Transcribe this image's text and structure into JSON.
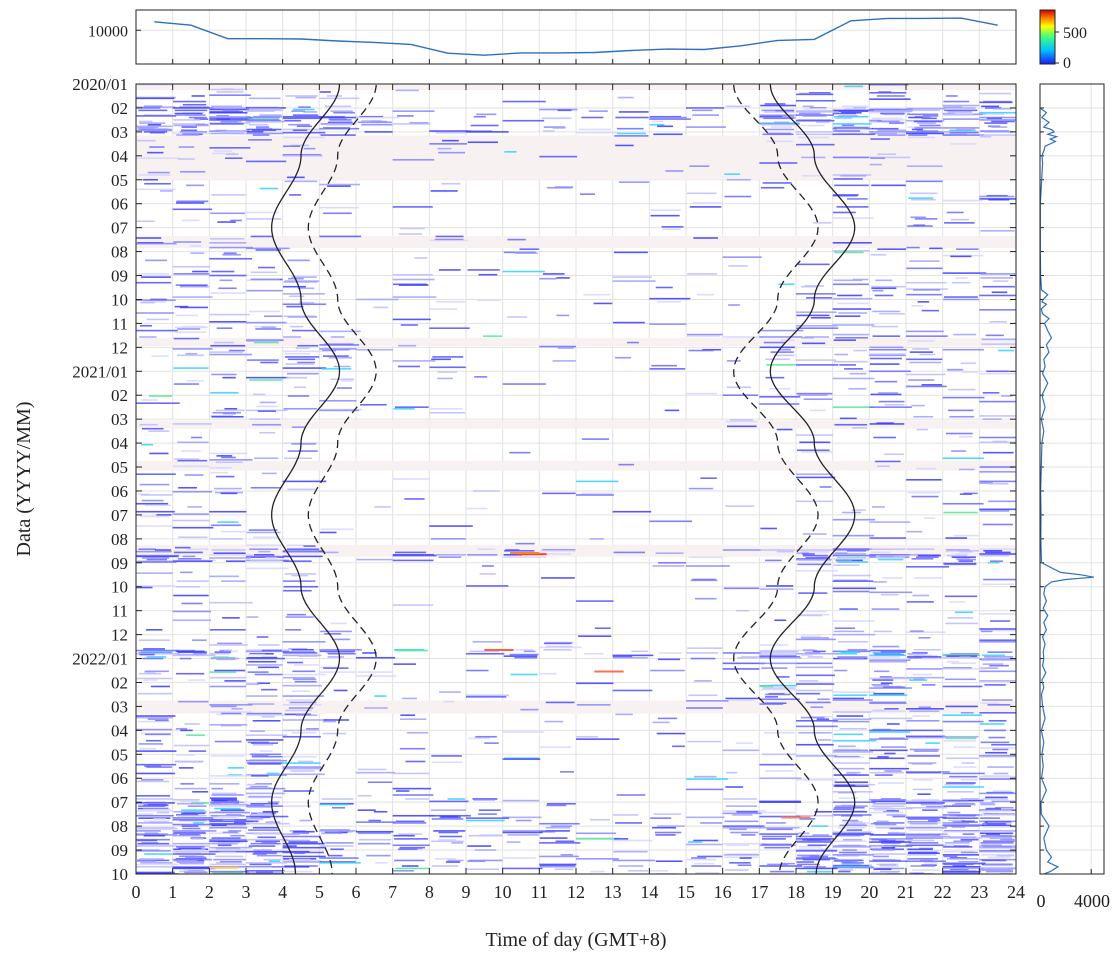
{
  "chart_data": {
    "type": "heatmap",
    "xlabel": "Time of day (GMT+8)",
    "ylabel": "Data (YYYY/MM)",
    "x_ticks": [
      "0",
      "1",
      "2",
      "3",
      "4",
      "5",
      "6",
      "7",
      "8",
      "9",
      "10",
      "11",
      "12",
      "13",
      "14",
      "15",
      "16",
      "17",
      "18",
      "19",
      "20",
      "21",
      "22",
      "23",
      "24"
    ],
    "x_range": [
      0,
      24
    ],
    "y_ticks": [
      "2020/01",
      "02",
      "03",
      "04",
      "05",
      "06",
      "07",
      "08",
      "09",
      "10",
      "11",
      "12",
      "2021/01",
      "02",
      "03",
      "04",
      "05",
      "06",
      "07",
      "08",
      "09",
      "10",
      "11",
      "12",
      "2022/01",
      "02",
      "03",
      "04",
      "05",
      "06",
      "07",
      "08",
      "09",
      "10"
    ],
    "y_range_months": [
      0,
      33
    ],
    "colorbar": {
      "ticks": [
        "500",
        "0"
      ],
      "range": [
        0,
        600
      ],
      "colors": [
        "#1a1aff",
        "#00c0ff",
        "#40ff80",
        "#ffff00",
        "#ff8000",
        "#d00000"
      ]
    },
    "top_panel": {
      "yticks": [
        "10000"
      ],
      "ylim": [
        0,
        16000
      ],
      "x": [
        0.5,
        1.5,
        2.5,
        3.5,
        4.5,
        5.5,
        6.5,
        7.5,
        8.5,
        9.5,
        10.5,
        11.5,
        12.5,
        13.5,
        14.5,
        15.5,
        16.5,
        17.5,
        18.5,
        19.5,
        20.5,
        21.5,
        22.5,
        23.5
      ],
      "values": [
        12500,
        11500,
        7500,
        7500,
        7400,
        6800,
        6400,
        5800,
        3200,
        2600,
        3300,
        3300,
        3400,
        4000,
        4400,
        4300,
        5400,
        7000,
        7300,
        12800,
        13500,
        13500,
        13600,
        11500
      ]
    },
    "right_panel": {
      "xticks": [
        "0",
        "4000"
      ],
      "xlim": [
        0,
        5000
      ],
      "months": [
        1.0,
        1.2,
        1.4,
        1.6,
        1.8,
        1.9,
        2.0,
        2.1,
        2.2,
        2.3,
        2.4,
        2.6,
        2.8,
        3.0,
        3.3,
        5.0,
        7.0,
        8.0,
        8.6,
        8.8,
        9.0,
        9.1,
        9.2,
        9.4,
        9.6,
        9.8,
        10.0,
        10.3,
        10.6,
        10.9,
        11.2,
        11.5,
        11.8,
        12.1,
        12.5,
        13.0,
        13.5,
        14.0,
        14.5,
        15.0,
        16.0,
        17.0,
        18.0,
        19.0,
        20.0,
        20.4,
        20.5,
        20.6,
        20.7,
        20.8,
        21.0,
        21.3,
        21.6,
        21.9,
        22.2,
        22.5,
        22.8,
        23.1,
        23.4,
        23.7,
        24.0,
        24.3,
        24.6,
        24.9,
        25.2,
        25.5,
        26.0,
        26.5,
        27.0,
        27.5,
        28.0,
        28.5,
        29.0,
        29.5,
        30.0,
        30.5,
        31.0,
        31.5,
        32.0,
        32.3,
        32.5,
        32.7,
        32.9,
        33.0
      ],
      "counts": [
        0,
        500,
        150,
        700,
        300,
        900,
        1100,
        600,
        1300,
        800,
        1200,
        400,
        300,
        150,
        200,
        20,
        20,
        50,
        120,
        600,
        250,
        150,
        500,
        100,
        200,
        700,
        350,
        600,
        900,
        500,
        700,
        300,
        400,
        200,
        600,
        150,
        400,
        100,
        300,
        150,
        100,
        50,
        80,
        60,
        120,
        1600,
        3200,
        4200,
        2000,
        900,
        400,
        300,
        500,
        250,
        600,
        300,
        500,
        200,
        400,
        250,
        300,
        200,
        450,
        150,
        300,
        120,
        200,
        400,
        100,
        300,
        150,
        250,
        120,
        500,
        80,
        100,
        700,
        300,
        500,
        900,
        600,
        1400,
        800,
        300
      ]
    },
    "sunrise_solid_x": [
      5.55,
      4.5,
      3.7,
      4.5,
      5.55,
      4.5,
      3.7,
      4.5,
      5.55,
      4.5,
      3.7,
      4.35
    ],
    "sunrise_dashed_x": [
      6.55,
      5.5,
      4.7,
      5.5,
      6.55,
      5.5,
      4.7,
      5.5,
      6.55,
      5.5,
      4.7,
      5.35
    ],
    "sunset_solid_x": [
      17.3,
      18.5,
      19.6,
      18.5,
      17.3,
      18.5,
      19.6,
      18.5,
      17.3,
      18.5,
      19.6,
      18.55
    ],
    "sunset_dashed_x": [
      16.3,
      17.5,
      18.6,
      17.5,
      16.3,
      17.5,
      18.6,
      17.5,
      16.3,
      17.5,
      18.6,
      17.55
    ],
    "sun_curve_months": [
      0,
      3,
      6,
      9,
      12,
      15,
      18,
      21,
      24,
      27,
      30,
      33
    ]
  }
}
